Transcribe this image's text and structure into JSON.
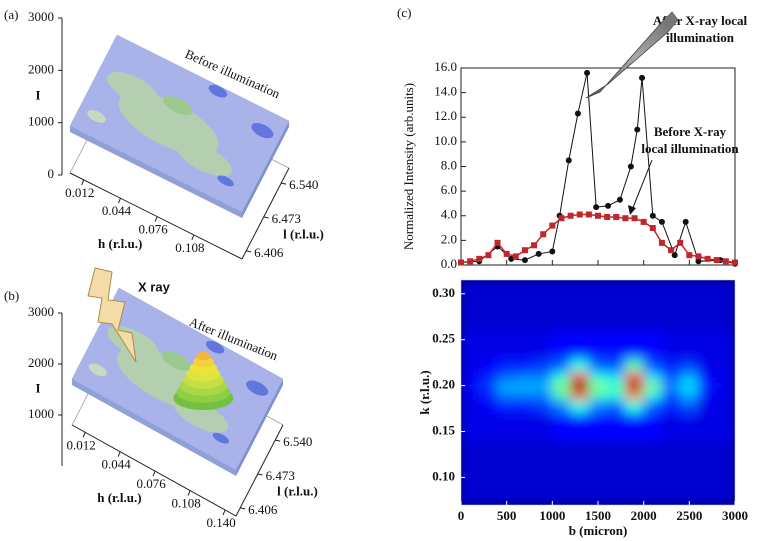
{
  "chart_data": [
    {
      "type": "surface",
      "panel_label": "(a)",
      "title": "Before illumination",
      "xlabel": "h (r.l.u.)",
      "ylabel": "l (r.l.u.)",
      "zlabel": "I",
      "xlim": [
        0,
        0.15
      ],
      "xticks": [
        0.012,
        0.044,
        0.076,
        0.108
      ],
      "ylim": [
        6.39,
        6.57
      ],
      "yticks": [
        6.406,
        6.473,
        {
          "value": 6.54,
          "label": "6.540"
        }
      ],
      "zlim": [
        0,
        3000
      ],
      "zticks": [
        0,
        1000,
        2000,
        3000
      ]
    },
    {
      "type": "surface",
      "panel_label": "(b)",
      "title": "After illumination",
      "annotation": "X ray",
      "xlabel": "h (r.l.u.)",
      "ylabel": "l (r.l.u.)",
      "zlabel": "I",
      "xlim": [
        0,
        0.15
      ],
      "xticks": [
        0.012,
        0.044,
        0.076,
        0.108,
        {
          "value": 0.14,
          "label": "0.140"
        }
      ],
      "ylim": [
        6.39,
        6.57
      ],
      "yticks": [
        6.406,
        6.473,
        {
          "value": 6.54,
          "label": "6.540"
        }
      ],
      "zlim": [
        0,
        3000
      ],
      "zticks": [
        1000,
        2000,
        3000
      ]
    },
    {
      "type": "line",
      "panel_label": "(c)",
      "ylabel": "Normalized Intensity (arb.units)",
      "xlim": [
        0,
        3000
      ],
      "xticks": [
        0,
        500,
        1000,
        1500,
        2000,
        2500,
        3000
      ],
      "ylim": [
        0,
        16
      ],
      "yticks": [
        {
          "value": 0,
          "label": "0.0"
        },
        {
          "value": 2,
          "label": "2.0"
        },
        {
          "value": 4,
          "label": "4.0"
        },
        {
          "value": 6,
          "label": "6.0"
        },
        {
          "value": 8,
          "label": "8.0"
        },
        {
          "value": 10,
          "label": "10.0"
        },
        {
          "value": 12,
          "label": "12.0"
        },
        {
          "value": 14,
          "label": "14.0"
        },
        {
          "value": 16,
          "label": "16.0"
        }
      ],
      "series": [
        {
          "name": [
            "After X-ray local",
            "illumination"
          ],
          "color": "#111111",
          "marker": "circle",
          "x": [
            0,
            200,
            400,
            550,
            700,
            850,
            1000,
            1080,
            1180,
            1280,
            1380,
            1480,
            1610,
            1740,
            1860,
            1930,
            1982,
            2100,
            2200,
            2340,
            2460,
            2600,
            2840,
            3000
          ],
          "values": [
            0.2,
            0.3,
            1.5,
            0.5,
            0.4,
            0.9,
            1.1,
            4.0,
            8.5,
            12.3,
            15.6,
            4.7,
            4.8,
            5.3,
            8.0,
            11.0,
            15.2,
            4.0,
            3.5,
            0.8,
            3.5,
            0.3,
            0.4,
            0.1
          ]
        },
        {
          "name": [
            "Before X-ray",
            "local illumination"
          ],
          "color": "#c0262a",
          "marker": "square",
          "x": [
            0,
            100,
            200,
            300,
            400,
            500,
            600,
            700,
            800,
            900,
            1000,
            1100,
            1200,
            1300,
            1400,
            1500,
            1600,
            1700,
            1800,
            1900,
            2000,
            2100,
            2200,
            2300,
            2400,
            2500,
            2600,
            2700,
            2800,
            2900,
            3000
          ],
          "values": [
            0.2,
            0.3,
            0.5,
            0.8,
            1.8,
            0.9,
            0.7,
            1.2,
            1.6,
            2.5,
            3.2,
            3.8,
            4.0,
            4.1,
            4.1,
            4.0,
            3.9,
            3.9,
            3.8,
            3.8,
            3.5,
            3.0,
            1.8,
            1.2,
            1.8,
            0.8,
            0.7,
            0.5,
            0.4,
            0.3,
            0.2
          ]
        }
      ]
    },
    {
      "type": "heatmap",
      "xlabel": "b (micron)",
      "ylabel": "k (r.l.u.)",
      "xlim": [
        0,
        3000
      ],
      "xticks": [
        0,
        500,
        1000,
        1500,
        2000,
        2500,
        3000
      ],
      "ylim": [
        0.07,
        0.315
      ],
      "yticks": [
        {
          "value": 0.1,
          "label": "0.10"
        },
        {
          "value": 0.15,
          "label": "0.15"
        },
        {
          "value": 0.2,
          "label": "0.20"
        },
        {
          "value": 0.25,
          "label": "0.25"
        },
        {
          "value": 0.3,
          "label": "0.30"
        }
      ],
      "x_bins": [
        0,
        200,
        400,
        600,
        800,
        1000,
        1200,
        1400,
        1600,
        1800,
        2000,
        2200,
        2400,
        2600,
        2800,
        3000
      ],
      "y_bins": [
        0.07,
        0.14,
        0.17,
        0.185,
        0.195,
        0.205,
        0.215,
        0.23,
        0.26,
        0.29,
        0.315
      ],
      "z": [
        [
          0.08,
          0.08,
          0.08,
          0.08,
          0.08,
          0.08,
          0.08,
          0.08,
          0.08,
          0.08,
          0.08,
          0.08,
          0.08,
          0.08,
          0.08
        ],
        [
          0.1,
          0.1,
          0.1,
          0.1,
          0.1,
          0.13,
          0.13,
          0.13,
          0.13,
          0.13,
          0.13,
          0.1,
          0.1,
          0.1,
          0.1
        ],
        [
          0.1,
          0.12,
          0.15,
          0.15,
          0.18,
          0.25,
          0.4,
          0.25,
          0.22,
          0.4,
          0.22,
          0.15,
          0.2,
          0.1,
          0.1
        ],
        [
          0.1,
          0.15,
          0.25,
          0.25,
          0.25,
          0.45,
          0.8,
          0.45,
          0.4,
          0.75,
          0.4,
          0.2,
          0.3,
          0.12,
          0.1
        ],
        [
          0.12,
          0.18,
          0.3,
          0.3,
          0.3,
          0.5,
          1.0,
          0.5,
          0.45,
          0.95,
          0.5,
          0.25,
          0.35,
          0.15,
          0.1
        ],
        [
          0.1,
          0.15,
          0.22,
          0.25,
          0.25,
          0.4,
          0.85,
          0.4,
          0.35,
          0.85,
          0.35,
          0.2,
          0.3,
          0.12,
          0.1
        ],
        [
          0.1,
          0.12,
          0.15,
          0.15,
          0.18,
          0.22,
          0.4,
          0.22,
          0.2,
          0.45,
          0.2,
          0.15,
          0.18,
          0.1,
          0.1
        ],
        [
          0.1,
          0.1,
          0.1,
          0.1,
          0.1,
          0.13,
          0.13,
          0.13,
          0.13,
          0.13,
          0.13,
          0.1,
          0.1,
          0.1,
          0.1
        ],
        [
          0.08,
          0.08,
          0.08,
          0.08,
          0.08,
          0.08,
          0.08,
          0.08,
          0.08,
          0.08,
          0.08,
          0.08,
          0.08,
          0.08,
          0.08
        ],
        [
          0.08,
          0.08,
          0.08,
          0.08,
          0.08,
          0.08,
          0.08,
          0.08,
          0.08,
          0.08,
          0.08,
          0.08,
          0.08,
          0.08,
          0.08
        ]
      ]
    }
  ]
}
